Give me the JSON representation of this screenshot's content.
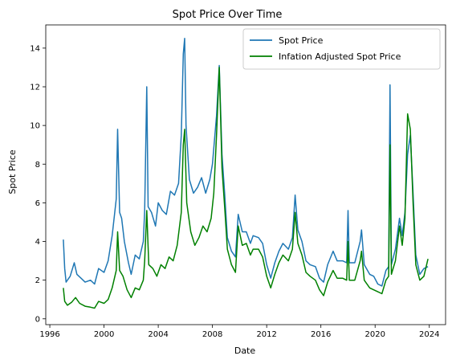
{
  "chart_data": {
    "type": "line",
    "title": "Spot Price Over Time",
    "xlabel": "Date",
    "ylabel": "Spot Price",
    "xlim": [
      1995.7,
      2025.2
    ],
    "ylim": [
      -0.3,
      15.2
    ],
    "x_ticks": [
      1996,
      2000,
      2004,
      2008,
      2012,
      2016,
      2020,
      2024
    ],
    "y_ticks": [
      0,
      2,
      4,
      6,
      8,
      10,
      12,
      14
    ],
    "grid": false,
    "legend_position": "top-right",
    "series": [
      {
        "name": "Spot Price",
        "color": "#1f77b4",
        "points": [
          [
            1997.0,
            4.1
          ],
          [
            1997.1,
            2.6
          ],
          [
            1997.2,
            1.9
          ],
          [
            1997.5,
            2.2
          ],
          [
            1997.8,
            2.9
          ],
          [
            1998.0,
            2.3
          ],
          [
            1998.3,
            2.1
          ],
          [
            1998.6,
            1.9
          ],
          [
            1999.0,
            2.0
          ],
          [
            1999.3,
            1.8
          ],
          [
            1999.6,
            2.6
          ],
          [
            2000.0,
            2.4
          ],
          [
            2000.3,
            3.0
          ],
          [
            2000.6,
            4.3
          ],
          [
            2000.9,
            6.2
          ],
          [
            2001.0,
            9.8
          ],
          [
            2001.15,
            5.5
          ],
          [
            2001.3,
            5.2
          ],
          [
            2001.5,
            4.0
          ],
          [
            2001.8,
            2.9
          ],
          [
            2002.0,
            2.3
          ],
          [
            2002.3,
            3.3
          ],
          [
            2002.6,
            3.1
          ],
          [
            2002.9,
            4.0
          ],
          [
            2003.0,
            5.6
          ],
          [
            2003.15,
            12.0
          ],
          [
            2003.25,
            5.8
          ],
          [
            2003.5,
            5.5
          ],
          [
            2003.8,
            4.8
          ],
          [
            2004.0,
            6.0
          ],
          [
            2004.3,
            5.6
          ],
          [
            2004.6,
            5.4
          ],
          [
            2004.9,
            6.6
          ],
          [
            2005.2,
            6.4
          ],
          [
            2005.5,
            7.0
          ],
          [
            2005.7,
            9.5
          ],
          [
            2005.85,
            13.7
          ],
          [
            2005.95,
            14.5
          ],
          [
            2006.05,
            10.0
          ],
          [
            2006.3,
            7.2
          ],
          [
            2006.6,
            6.5
          ],
          [
            2006.9,
            6.8
          ],
          [
            2007.2,
            7.3
          ],
          [
            2007.5,
            6.5
          ],
          [
            2007.8,
            7.2
          ],
          [
            2008.0,
            8.0
          ],
          [
            2008.3,
            10.5
          ],
          [
            2008.5,
            13.1
          ],
          [
            2008.7,
            8.5
          ],
          [
            2008.9,
            6.5
          ],
          [
            2009.1,
            4.2
          ],
          [
            2009.4,
            3.5
          ],
          [
            2009.7,
            3.2
          ],
          [
            2009.9,
            5.4
          ],
          [
            2010.2,
            4.5
          ],
          [
            2010.5,
            4.5
          ],
          [
            2010.8,
            3.9
          ],
          [
            2011.0,
            4.3
          ],
          [
            2011.4,
            4.2
          ],
          [
            2011.7,
            3.9
          ],
          [
            2012.0,
            2.8
          ],
          [
            2012.3,
            2.1
          ],
          [
            2012.6,
            2.9
          ],
          [
            2012.9,
            3.5
          ],
          [
            2013.2,
            3.9
          ],
          [
            2013.6,
            3.6
          ],
          [
            2013.9,
            4.2
          ],
          [
            2014.1,
            6.4
          ],
          [
            2014.3,
            4.6
          ],
          [
            2014.6,
            4.0
          ],
          [
            2014.9,
            3.0
          ],
          [
            2015.2,
            2.8
          ],
          [
            2015.6,
            2.7
          ],
          [
            2015.9,
            2.1
          ],
          [
            2016.2,
            1.9
          ],
          [
            2016.5,
            2.8
          ],
          [
            2016.9,
            3.5
          ],
          [
            2017.2,
            3.0
          ],
          [
            2017.6,
            3.0
          ],
          [
            2017.9,
            2.9
          ],
          [
            2018.0,
            5.6
          ],
          [
            2018.1,
            2.9
          ],
          [
            2018.5,
            2.9
          ],
          [
            2018.9,
            4.0
          ],
          [
            2019.0,
            4.6
          ],
          [
            2019.2,
            2.8
          ],
          [
            2019.6,
            2.3
          ],
          [
            2019.9,
            2.2
          ],
          [
            2020.2,
            1.8
          ],
          [
            2020.5,
            1.7
          ],
          [
            2020.8,
            2.5
          ],
          [
            2021.0,
            2.7
          ],
          [
            2021.1,
            12.1
          ],
          [
            2021.2,
            2.8
          ],
          [
            2021.5,
            3.6
          ],
          [
            2021.8,
            5.2
          ],
          [
            2022.0,
            4.3
          ],
          [
            2022.2,
            5.5
          ],
          [
            2022.4,
            8.5
          ],
          [
            2022.6,
            9.5
          ],
          [
            2022.8,
            6.5
          ],
          [
            2023.0,
            3.3
          ],
          [
            2023.3,
            2.3
          ],
          [
            2023.6,
            2.6
          ],
          [
            2023.9,
            2.7
          ]
        ]
      },
      {
        "name": "Infation Adjusted Spot Price",
        "color": "#008000",
        "points": [
          [
            1997.0,
            1.6
          ],
          [
            1997.1,
            0.9
          ],
          [
            1997.3,
            0.7
          ],
          [
            1997.6,
            0.85
          ],
          [
            1997.9,
            1.1
          ],
          [
            1998.2,
            0.8
          ],
          [
            1998.6,
            0.65
          ],
          [
            1999.0,
            0.6
          ],
          [
            1999.3,
            0.55
          ],
          [
            1999.6,
            0.9
          ],
          [
            2000.0,
            0.8
          ],
          [
            2000.3,
            1.0
          ],
          [
            2000.6,
            1.6
          ],
          [
            2000.9,
            2.5
          ],
          [
            2001.0,
            4.5
          ],
          [
            2001.15,
            2.5
          ],
          [
            2001.4,
            2.2
          ],
          [
            2001.7,
            1.5
          ],
          [
            2002.0,
            1.1
          ],
          [
            2002.3,
            1.6
          ],
          [
            2002.6,
            1.5
          ],
          [
            2002.9,
            2.0
          ],
          [
            2003.0,
            3.0
          ],
          [
            2003.15,
            5.6
          ],
          [
            2003.3,
            2.8
          ],
          [
            2003.6,
            2.6
          ],
          [
            2003.9,
            2.2
          ],
          [
            2004.2,
            2.8
          ],
          [
            2004.5,
            2.6
          ],
          [
            2004.8,
            3.2
          ],
          [
            2005.1,
            3.0
          ],
          [
            2005.4,
            3.8
          ],
          [
            2005.7,
            5.5
          ],
          [
            2005.85,
            9.0
          ],
          [
            2005.95,
            9.8
          ],
          [
            2006.1,
            6.0
          ],
          [
            2006.4,
            4.5
          ],
          [
            2006.7,
            3.8
          ],
          [
            2007.0,
            4.2
          ],
          [
            2007.3,
            4.8
          ],
          [
            2007.6,
            4.5
          ],
          [
            2007.9,
            5.2
          ],
          [
            2008.1,
            6.5
          ],
          [
            2008.3,
            9.5
          ],
          [
            2008.5,
            13.0
          ],
          [
            2008.7,
            7.8
          ],
          [
            2008.9,
            5.8
          ],
          [
            2009.1,
            3.6
          ],
          [
            2009.4,
            2.8
          ],
          [
            2009.7,
            2.4
          ],
          [
            2009.9,
            4.8
          ],
          [
            2010.2,
            3.8
          ],
          [
            2010.5,
            3.9
          ],
          [
            2010.8,
            3.3
          ],
          [
            2011.0,
            3.6
          ],
          [
            2011.4,
            3.6
          ],
          [
            2011.7,
            3.2
          ],
          [
            2012.0,
            2.2
          ],
          [
            2012.3,
            1.6
          ],
          [
            2012.6,
            2.3
          ],
          [
            2012.9,
            2.9
          ],
          [
            2013.2,
            3.3
          ],
          [
            2013.6,
            3.0
          ],
          [
            2013.9,
            3.6
          ],
          [
            2014.1,
            5.5
          ],
          [
            2014.3,
            3.9
          ],
          [
            2014.6,
            3.3
          ],
          [
            2014.9,
            2.4
          ],
          [
            2015.2,
            2.2
          ],
          [
            2015.6,
            2.0
          ],
          [
            2015.9,
            1.5
          ],
          [
            2016.2,
            1.2
          ],
          [
            2016.5,
            1.9
          ],
          [
            2016.9,
            2.5
          ],
          [
            2017.2,
            2.1
          ],
          [
            2017.6,
            2.1
          ],
          [
            2017.9,
            2.0
          ],
          [
            2018.0,
            4.0
          ],
          [
            2018.1,
            2.0
          ],
          [
            2018.5,
            2.0
          ],
          [
            2018.9,
            3.0
          ],
          [
            2019.0,
            3.5
          ],
          [
            2019.2,
            2.0
          ],
          [
            2019.6,
            1.6
          ],
          [
            2019.9,
            1.5
          ],
          [
            2020.2,
            1.4
          ],
          [
            2020.5,
            1.3
          ],
          [
            2020.8,
            2.0
          ],
          [
            2021.0,
            2.2
          ],
          [
            2021.1,
            9.0
          ],
          [
            2021.2,
            2.3
          ],
          [
            2021.5,
            3.0
          ],
          [
            2021.8,
            4.8
          ],
          [
            2022.0,
            3.8
          ],
          [
            2022.2,
            5.2
          ],
          [
            2022.4,
            10.6
          ],
          [
            2022.6,
            9.8
          ],
          [
            2022.8,
            6.0
          ],
          [
            2023.0,
            2.8
          ],
          [
            2023.3,
            2.0
          ],
          [
            2023.6,
            2.2
          ],
          [
            2023.9,
            3.1
          ]
        ]
      }
    ]
  }
}
